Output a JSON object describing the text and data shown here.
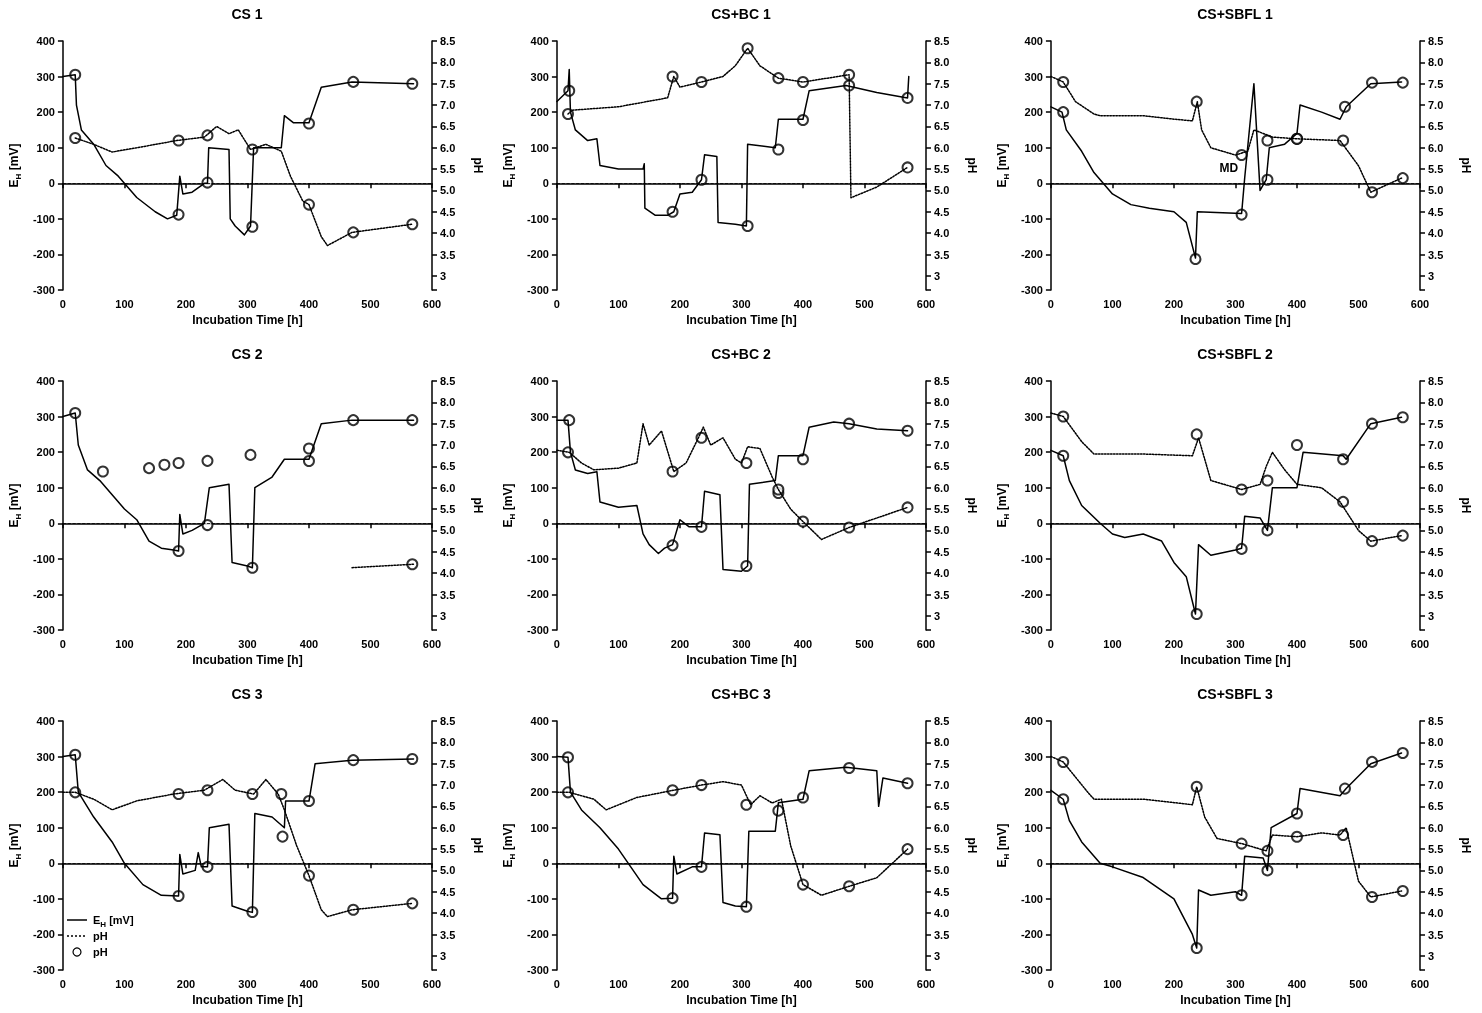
{
  "chart_data": [
    {
      "type": "line",
      "title": "CS 1",
      "xlabel": "Incubation Time [h]",
      "ylabel": "E$_{H}$ [mV]",
      "y2label": "pH",
      "xlim": [
        0,
        600
      ],
      "xticks": [
        0,
        100,
        200,
        300,
        400,
        500,
        600
      ],
      "ylim": [
        -300,
        400
      ],
      "yticks": [
        -300,
        -200,
        -100,
        0,
        100,
        200,
        300,
        400
      ],
      "y2lim": [
        2.67,
        8.5
      ],
      "y2ticks": [
        {
          "value": 2.67,
          "label": null
        },
        3,
        3.5,
        {
          "value": 4,
          "label": "4.0"
        },
        4.5,
        {
          "value": 5,
          "label": "5.0"
        },
        5.5,
        {
          "value": 6,
          "label": "6.0"
        },
        6.5,
        {
          "value": 7,
          "label": "7.0"
        },
        7.5,
        {
          "value": 8,
          "label": "8.0"
        },
        8.5
      ],
      "ref_lines": [
        {
          "axis": "y",
          "value": 0,
          "line_style": "dashed",
          "color": "#000000"
        }
      ],
      "series": [
        {
          "type": "line",
          "color": "#000000",
          "line_style": "solid",
          "marker": "none",
          "x": [
            0,
            20,
            22,
            30,
            50,
            70,
            90,
            120,
            150,
            170,
            185,
            190,
            195,
            210,
            230,
            235,
            237,
            270,
            272,
            280,
            295,
            305,
            310,
            355,
            360,
            375,
            400,
            420,
            470,
            570
          ],
          "values": [
            300,
            305,
            220,
            150,
            110,
            50,
            20,
            -40,
            -80,
            -100,
            -90,
            20,
            -30,
            -25,
            0,
            0,
            100,
            95,
            -100,
            -120,
            -145,
            -120,
            100,
            100,
            190,
            170,
            170,
            270,
            285,
            280
          ]
        },
        {
          "type": "line",
          "axis": "y2",
          "color": "#000000",
          "line_style": "dotted",
          "marker": "none",
          "x": [
            20,
            50,
            80,
            120,
            185,
            230,
            250,
            270,
            285,
            305,
            330,
            355,
            370,
            390,
            400,
            420,
            430,
            470,
            568
          ],
          "values": [
            6.23,
            6.08,
            5.9,
            6.0,
            6.17,
            6.25,
            6.5,
            6.33,
            6.42,
            5.96,
            6.08,
            5.92,
            5.33,
            4.75,
            4.67,
            3.92,
            3.71,
            4.02,
            4.21
          ]
        },
        {
          "type": "scatter",
          "color": "#000000",
          "marker": "circle",
          "x": [
            20,
            188,
            235,
            308,
            400,
            472,
            568
          ],
          "values": [
            305,
            -88,
            2,
            -122,
            168,
            285,
            280
          ]
        },
        {
          "type": "scatter",
          "axis": "y2",
          "color": "#000000",
          "marker": "circle",
          "x": [
            20,
            188,
            235,
            308,
            400,
            472,
            568
          ],
          "values": [
            6.23,
            6.17,
            6.29,
            5.96,
            4.67,
            4.02,
            4.21
          ]
        }
      ]
    },
    {
      "type": "line",
      "title": "CS+BC 1",
      "xlabel": "Incubation Time [h]",
      "ylabel": "E$_{H}$ [mV]",
      "y2label": "pH",
      "xlim": [
        0,
        600
      ],
      "xticks": [
        0,
        100,
        200,
        300,
        400,
        500,
        600
      ],
      "ylim": [
        -300,
        400
      ],
      "yticks": [
        -300,
        -200,
        -100,
        0,
        100,
        200,
        300,
        400
      ],
      "y2lim": [
        2.67,
        8.5
      ],
      "y2ticks": [
        {
          "value": 2.67,
          "label": null
        },
        3,
        3.5,
        {
          "value": 4,
          "label": "4.0"
        },
        4.5,
        {
          "value": 5,
          "label": "5.0"
        },
        5.5,
        {
          "value": 6,
          "label": "6.0"
        },
        6.5,
        {
          "value": 7,
          "label": "7.0"
        },
        7.5,
        {
          "value": 8,
          "label": "8.0"
        },
        8.5
      ],
      "ref_lines": [
        {
          "axis": "y",
          "value": 0,
          "line_style": "dashed",
          "color": "#000000"
        }
      ],
      "series": [
        {
          "type": "line",
          "color": "#000000",
          "line_style": "solid",
          "marker": "none",
          "x": [
            0,
            18,
            20,
            22,
            30,
            50,
            65,
            70,
            100,
            140,
            142,
            143,
            160,
            180,
            190,
            200,
            220,
            235,
            240,
            260,
            262,
            290,
            308,
            310,
            355,
            360,
            400,
            410,
            470,
            520,
            570,
            572
          ],
          "values": [
            230,
            260,
            320,
            200,
            150,
            120,
            125,
            50,
            40,
            40,
            55,
            -70,
            -90,
            -90,
            -80,
            -30,
            -25,
            10,
            80,
            75,
            -110,
            -115,
            -120,
            110,
            100,
            180,
            180,
            260,
            275,
            255,
            240,
            300
          ]
        },
        {
          "type": "line",
          "axis": "y2",
          "color": "#000000",
          "line_style": "dotted",
          "marker": "none",
          "x": [
            18,
            25,
            100,
            180,
            190,
            200,
            235,
            270,
            290,
            310,
            330,
            360,
            400,
            475,
            478,
            520,
            570
          ],
          "values": [
            6.79,
            6.88,
            6.96,
            7.17,
            7.67,
            7.42,
            7.54,
            7.67,
            7.92,
            8.33,
            7.92,
            7.63,
            7.54,
            7.71,
            4.83,
            5.08,
            5.54
          ]
        },
        {
          "type": "scatter",
          "color": "#000000",
          "marker": "circle",
          "x": [
            20,
            188,
            235,
            310,
            360,
            400,
            475,
            570
          ],
          "values": [
            260,
            -80,
            10,
            -120,
            95,
            178,
            275,
            240
          ]
        },
        {
          "type": "scatter",
          "axis": "y2",
          "color": "#000000",
          "marker": "circle",
          "x": [
            18,
            188,
            235,
            310,
            360,
            400,
            475,
            570
          ],
          "values": [
            6.79,
            7.67,
            7.54,
            8.33,
            7.63,
            7.54,
            7.71,
            5.54
          ]
        }
      ]
    },
    {
      "type": "line",
      "title": "CS+SBFL 1",
      "xlabel": "Incubation Time [h]",
      "ylabel": "E$_{H}$ [mV]",
      "y2label": "pH",
      "xlim": [
        0,
        600
      ],
      "xticks": [
        0,
        100,
        200,
        300,
        400,
        500,
        600
      ],
      "ylim": [
        -300,
        400
      ],
      "yticks": [
        -300,
        -200,
        -100,
        0,
        100,
        200,
        300,
        400
      ],
      "y2lim": [
        2.67,
        8.5
      ],
      "y2ticks": [
        {
          "value": 2.67,
          "label": null
        },
        3,
        3.5,
        {
          "value": 4,
          "label": "4.0"
        },
        4.5,
        {
          "value": 5,
          "label": "5.0"
        },
        5.5,
        {
          "value": 6,
          "label": "6.0"
        },
        6.5,
        {
          "value": 7,
          "label": "7.0"
        },
        7.5,
        {
          "value": 8,
          "label": "8.0"
        },
        8.5
      ],
      "ref_lines": [
        {
          "axis": "y",
          "value": 0,
          "line_style": "dashed",
          "color": "#000000"
        }
      ],
      "annotations": [
        "MD"
      ],
      "series": [
        {
          "type": "line",
          "color": "#000000",
          "line_style": "solid",
          "marker": "none",
          "x": [
            0,
            18,
            25,
            50,
            70,
            100,
            130,
            160,
            200,
            220,
            235,
            238,
            310,
            315,
            330,
            340,
            350,
            355,
            380,
            400,
            405,
            440,
            470,
            480,
            520,
            570
          ],
          "values": [
            215,
            200,
            150,
            90,
            30,
            -30,
            -60,
            -70,
            -80,
            -110,
            -210,
            -80,
            -85,
            15,
            280,
            -20,
            10,
            100,
            110,
            140,
            220,
            200,
            180,
            215,
            280,
            285
          ]
        },
        {
          "type": "line",
          "axis": "y2",
          "color": "#000000",
          "line_style": "dotted",
          "marker": "none",
          "x": [
            0,
            20,
            40,
            70,
            80,
            150,
            200,
            230,
            238,
            245,
            260,
            300,
            320,
            330,
            360,
            400,
            470,
            500,
            520,
            570
          ],
          "values": [
            7.67,
            7.54,
            7.08,
            6.79,
            6.75,
            6.75,
            6.67,
            6.63,
            7.08,
            6.42,
            6.0,
            5.83,
            5.92,
            6.42,
            6.25,
            6.21,
            6.17,
            5.58,
            4.96,
            5.29
          ]
        },
        {
          "type": "scatter",
          "color": "#000000",
          "marker": "circle",
          "x": [
            20,
            235,
            310,
            352,
            400,
            478,
            522,
            572
          ],
          "values": [
            200,
            -213,
            -88,
            10,
            125,
            215,
            283,
            283
          ]
        },
        {
          "type": "scatter",
          "axis": "y2",
          "color": "#000000",
          "marker": "circle",
          "x": [
            20,
            237,
            310,
            352,
            400,
            475,
            522,
            572
          ],
          "values": [
            7.54,
            7.08,
            5.83,
            6.17,
            6.21,
            6.17,
            4.96,
            5.29
          ]
        }
      ]
    },
    {
      "type": "line",
      "title": "CS 2",
      "xlabel": "Incubation Time [h]",
      "ylabel": "E$_{H}$ [mV]",
      "y2label": "pH",
      "xlim": [
        0,
        600
      ],
      "xticks": [
        0,
        100,
        200,
        300,
        400,
        500,
        600
      ],
      "ylim": [
        -300,
        400
      ],
      "yticks": [
        -300,
        -200,
        -100,
        0,
        100,
        200,
        300,
        400
      ],
      "y2lim": [
        2.67,
        8.5
      ],
      "y2ticks": [
        {
          "value": 2.67,
          "label": null
        },
        3,
        3.5,
        {
          "value": 4,
          "label": "4.0"
        },
        4.5,
        {
          "value": 5,
          "label": "5.0"
        },
        5.5,
        {
          "value": 6,
          "label": "6.0"
        },
        6.5,
        {
          "value": 7,
          "label": "7.0"
        },
        7.5,
        {
          "value": 8,
          "label": "8.0"
        },
        8.5
      ],
      "ref_lines": [
        {
          "axis": "y",
          "value": 0,
          "line_style": "dashed",
          "color": "#000000"
        }
      ],
      "series": [
        {
          "type": "line",
          "color": "#000000",
          "line_style": "solid",
          "marker": "none",
          "x": [
            0,
            20,
            25,
            40,
            60,
            80,
            100,
            120,
            140,
            160,
            180,
            188,
            190,
            195,
            210,
            230,
            238,
            270,
            275,
            300,
            308,
            312,
            340,
            360,
            380,
            400,
            405,
            420,
            470,
            570
          ],
          "values": [
            300,
            310,
            220,
            150,
            120,
            80,
            40,
            10,
            -50,
            -70,
            -75,
            -78,
            25,
            -30,
            -20,
            0,
            100,
            110,
            -110,
            -120,
            -125,
            100,
            130,
            180,
            180,
            180,
            205,
            280,
            290,
            290
          ]
        },
        {
          "type": "line",
          "axis": "y2",
          "color": "#000000",
          "line_style": "dotted",
          "marker": "none",
          "x": [
            470,
            570
          ],
          "values": [
            4.13,
            4.21
          ]
        },
        {
          "type": "scatter",
          "color": "#000000",
          "marker": "circle",
          "x": [
            20,
            188,
            235,
            308,
            400,
            472,
            568
          ],
          "values": [
            310,
            -78,
            -5,
            -125,
            175,
            290,
            290
          ]
        },
        {
          "type": "scatter",
          "axis": "y2",
          "color": "#000000",
          "marker": "circle",
          "x": [
            65,
            140,
            165,
            188,
            235,
            305,
            400,
            568
          ],
          "values": [
            6.38,
            6.46,
            6.54,
            6.58,
            6.63,
            6.77,
            6.92,
            4.21
          ]
        }
      ]
    },
    {
      "type": "line",
      "title": "CS+BC 2",
      "xlabel": "Incubation Time [h]",
      "ylabel": "E$_{H}$ [mV]",
      "y2label": "pH",
      "xlim": [
        0,
        600
      ],
      "xticks": [
        0,
        100,
        200,
        300,
        400,
        500,
        600
      ],
      "ylim": [
        -300,
        400
      ],
      "yticks": [
        -300,
        -200,
        -100,
        0,
        100,
        200,
        300,
        400
      ],
      "y2lim": [
        2.67,
        8.5
      ],
      "y2ticks": [
        {
          "value": 2.67,
          "label": null
        },
        3,
        3.5,
        {
          "value": 4,
          "label": "4.0"
        },
        4.5,
        {
          "value": 5,
          "label": "5.0"
        },
        5.5,
        {
          "value": 6,
          "label": "6.0"
        },
        6.5,
        {
          "value": 7,
          "label": "7.0"
        },
        7.5,
        {
          "value": 8,
          "label": "8.0"
        },
        8.5
      ],
      "ref_lines": [
        {
          "axis": "y",
          "value": 0,
          "line_style": "dashed",
          "color": "#000000"
        }
      ],
      "series": [
        {
          "type": "line",
          "color": "#000000",
          "line_style": "solid",
          "marker": "none",
          "x": [
            0,
            18,
            22,
            30,
            50,
            65,
            70,
            100,
            130,
            140,
            150,
            165,
            175,
            188,
            200,
            215,
            235,
            240,
            265,
            270,
            300,
            310,
            313,
            355,
            360,
            400,
            410,
            450,
            475,
            520,
            570
          ],
          "values": [
            290,
            290,
            200,
            150,
            140,
            145,
            60,
            45,
            50,
            -30,
            -60,
            -85,
            -70,
            -60,
            10,
            -10,
            -10,
            90,
            80,
            -130,
            -135,
            -120,
            110,
            120,
            190,
            190,
            270,
            285,
            280,
            265,
            260
          ]
        },
        {
          "type": "line",
          "axis": "y2",
          "color": "#000000",
          "line_style": "dotted",
          "marker": "none",
          "x": [
            0,
            20,
            40,
            60,
            100,
            130,
            140,
            150,
            170,
            190,
            210,
            230,
            238,
            250,
            270,
            290,
            300,
            310,
            330,
            350,
            360,
            380,
            400,
            430,
            475,
            570
          ],
          "values": [
            6.88,
            6.83,
            6.58,
            6.42,
            6.46,
            6.58,
            7.5,
            7.0,
            7.33,
            6.38,
            6.58,
            7.17,
            7.42,
            7.0,
            7.17,
            6.67,
            6.58,
            6.96,
            6.92,
            6.25,
            5.96,
            5.5,
            5.21,
            4.79,
            5.07,
            5.54
          ]
        },
        {
          "type": "scatter",
          "color": "#000000",
          "marker": "circle",
          "x": [
            20,
            188,
            235,
            308,
            360,
            400,
            475,
            570
          ],
          "values": [
            290,
            -62,
            -10,
            -120,
            85,
            180,
            280,
            260
          ]
        },
        {
          "type": "scatter",
          "axis": "y2",
          "color": "#000000",
          "marker": "circle",
          "x": [
            18,
            188,
            235,
            308,
            360,
            400,
            475,
            570
          ],
          "values": [
            6.83,
            6.38,
            7.17,
            6.58,
            5.96,
            5.21,
            5.07,
            5.54
          ]
        }
      ]
    },
    {
      "type": "line",
      "title": "CS+SBFL 2",
      "xlabel": "Incubation Time [h]",
      "ylabel": "E$_{H}$ [mV]",
      "y2label": "pH",
      "xlim": [
        0,
        600
      ],
      "xticks": [
        0,
        100,
        200,
        300,
        400,
        500,
        600
      ],
      "ylim": [
        -300,
        400
      ],
      "yticks": [
        -300,
        -200,
        -100,
        0,
        100,
        200,
        300,
        400
      ],
      "y2lim": [
        2.67,
        8.5
      ],
      "y2ticks": [
        {
          "value": 2.67,
          "label": null
        },
        3,
        3.5,
        {
          "value": 4,
          "label": "4.0"
        },
        4.5,
        {
          "value": 5,
          "label": "5.0"
        },
        5.5,
        {
          "value": 6,
          "label": "6.0"
        },
        6.5,
        {
          "value": 7,
          "label": "7.0"
        },
        7.5,
        {
          "value": 8,
          "label": "8.0"
        },
        8.5
      ],
      "ref_lines": [
        {
          "axis": "y",
          "value": 0,
          "line_style": "dashed",
          "color": "#000000"
        }
      ],
      "series": [
        {
          "type": "line",
          "color": "#000000",
          "line_style": "solid",
          "marker": "none",
          "x": [
            0,
            20,
            30,
            50,
            80,
            100,
            120,
            150,
            180,
            200,
            220,
            235,
            240,
            260,
            300,
            310,
            315,
            340,
            352,
            360,
            400,
            410,
            475,
            480,
            520,
            570
          ],
          "values": [
            205,
            190,
            120,
            50,
            0,
            -30,
            -40,
            -30,
            -50,
            -110,
            -150,
            -255,
            -60,
            -90,
            -75,
            -70,
            20,
            15,
            -20,
            100,
            100,
            200,
            190,
            180,
            280,
            298
          ]
        },
        {
          "type": "line",
          "axis": "y2",
          "color": "#000000",
          "line_style": "dotted",
          "marker": "none",
          "x": [
            0,
            20,
            50,
            70,
            150,
            230,
            240,
            260,
            310,
            340,
            350,
            360,
            380,
            400,
            440,
            470,
            500,
            520,
            570
          ],
          "values": [
            7.75,
            7.67,
            7.08,
            6.79,
            6.79,
            6.75,
            7.17,
            6.17,
            5.96,
            6.08,
            6.5,
            6.83,
            6.42,
            6.08,
            6.0,
            5.67,
            5.0,
            4.75,
            4.88
          ]
        },
        {
          "type": "scatter",
          "color": "#000000",
          "marker": "circle",
          "x": [
            20,
            237,
            310,
            352,
            400,
            475,
            522,
            572
          ],
          "values": [
            190,
            -255,
            -72,
            -20,
            220,
            180,
            280,
            298
          ]
        },
        {
          "type": "scatter",
          "axis": "y2",
          "color": "#000000",
          "marker": "circle",
          "x": [
            20,
            237,
            310,
            352,
            475,
            522,
            572
          ],
          "values": [
            7.67,
            7.25,
            5.96,
            6.17,
            5.67,
            4.75,
            4.88
          ]
        }
      ]
    },
    {
      "type": "line",
      "title": "CS 3",
      "xlabel": "Incubation Time [h]",
      "ylabel": "E$_{H}$ [mV]",
      "y2label": "pH",
      "xlim": [
        0,
        600
      ],
      "xticks": [
        0,
        100,
        200,
        300,
        400,
        500,
        600
      ],
      "ylim": [
        -300,
        400
      ],
      "yticks": [
        -300,
        -200,
        -100,
        0,
        100,
        200,
        300,
        400
      ],
      "y2lim": [
        2.67,
        8.5
      ],
      "y2ticks": [
        {
          "value": 2.67,
          "label": null
        },
        3,
        3.5,
        {
          "value": 4,
          "label": "4.0"
        },
        4.5,
        {
          "value": 5,
          "label": "5.0"
        },
        5.5,
        {
          "value": 6,
          "label": "6.0"
        },
        6.5,
        {
          "value": 7,
          "label": "7.0"
        },
        7.5,
        {
          "value": 8,
          "label": "8.0"
        },
        8.5
      ],
      "ref_lines": [
        {
          "axis": "y",
          "value": 0,
          "line_style": "dashed",
          "color": "#000000"
        }
      ],
      "legend": "bottom left",
      "series": [
        {
          "name": "E$_{H}$ [mV]",
          "type": "line",
          "color": "#000000",
          "line_style": "solid",
          "marker": "none",
          "x": [
            0,
            20,
            25,
            50,
            80,
            100,
            130,
            160,
            188,
            190,
            195,
            215,
            220,
            225,
            235,
            238,
            270,
            275,
            300,
            308,
            312,
            340,
            360,
            362,
            400,
            410,
            470,
            570
          ],
          "values": [
            300,
            305,
            200,
            130,
            60,
            0,
            -60,
            -90,
            -92,
            25,
            -30,
            -20,
            30,
            -10,
            -10,
            100,
            110,
            -120,
            -135,
            -138,
            140,
            130,
            100,
            175,
            175,
            280,
            290,
            293
          ]
        },
        {
          "name": "pH",
          "type": "line",
          "axis": "y2",
          "color": "#000000",
          "line_style": "dotted",
          "marker": "none",
          "x": [
            0,
            20,
            50,
            80,
            120,
            180,
            230,
            260,
            280,
            310,
            330,
            350,
            360,
            380,
            400,
            420,
            430,
            470,
            568
          ],
          "values": [
            6.83,
            6.83,
            6.67,
            6.42,
            6.63,
            6.79,
            6.88,
            7.13,
            6.88,
            6.79,
            7.13,
            6.79,
            6.42,
            5.58,
            4.88,
            4.08,
            3.92,
            4.08,
            4.23
          ]
        },
        {
          "type": "scatter",
          "color": "#000000",
          "marker": "circle",
          "x": [
            20,
            188,
            235,
            308,
            357,
            400,
            472,
            568
          ],
          "values": [
            305,
            -92,
            -10,
            -137,
            75,
            175,
            290,
            293
          ]
        },
        {
          "name": "pH",
          "type": "scatter",
          "axis": "y2",
          "color": "#000000",
          "marker": "circle",
          "x": [
            20,
            188,
            235,
            308,
            355,
            400,
            472,
            568
          ],
          "values": [
            6.83,
            6.79,
            6.88,
            6.79,
            6.79,
            4.88,
            4.08,
            4.23
          ]
        }
      ]
    },
    {
      "type": "line",
      "title": "CS+BC 3",
      "xlabel": "Incubation Time [h]",
      "ylabel": "E$_{H}$ [mV]",
      "y2label": "pH",
      "xlim": [
        0,
        600
      ],
      "xticks": [
        0,
        100,
        200,
        300,
        400,
        500,
        600
      ],
      "ylim": [
        -300,
        400
      ],
      "yticks": [
        -300,
        -200,
        -100,
        0,
        100,
        200,
        300,
        400
      ],
      "y2lim": [
        2.67,
        8.5
      ],
      "y2ticks": [
        {
          "value": 2.67,
          "label": null
        },
        3,
        3.5,
        {
          "value": 4,
          "label": "4.0"
        },
        4.5,
        {
          "value": 5,
          "label": "5.0"
        },
        5.5,
        {
          "value": 6,
          "label": "6.0"
        },
        6.5,
        {
          "value": 7,
          "label": "7.0"
        },
        7.5,
        {
          "value": 8,
          "label": "8.0"
        },
        8.5
      ],
      "ref_lines": [
        {
          "axis": "y",
          "value": 0,
          "line_style": "dashed",
          "color": "#000000"
        }
      ],
      "series": [
        {
          "type": "line",
          "color": "#000000",
          "line_style": "solid",
          "marker": "none",
          "x": [
            0,
            18,
            22,
            40,
            70,
            100,
            140,
            170,
            188,
            190,
            195,
            220,
            235,
            240,
            265,
            270,
            290,
            308,
            312,
            355,
            360,
            400,
            410,
            470,
            520,
            523,
            530,
            570
          ],
          "values": [
            300,
            298,
            200,
            150,
            100,
            40,
            -60,
            -100,
            -98,
            20,
            -30,
            -10,
            -10,
            85,
            80,
            -110,
            -120,
            -122,
            90,
            90,
            170,
            180,
            260,
            270,
            260,
            160,
            240,
            225
          ]
        },
        {
          "type": "line",
          "axis": "y2",
          "color": "#000000",
          "line_style": "dotted",
          "marker": "none",
          "x": [
            0,
            20,
            60,
            80,
            130,
            190,
            235,
            270,
            300,
            315,
            330,
            350,
            365,
            380,
            400,
            430,
            475,
            520,
            570
          ],
          "values": [
            6.83,
            6.83,
            6.67,
            6.42,
            6.71,
            6.88,
            7.0,
            7.08,
            7.0,
            6.54,
            6.75,
            6.58,
            6.67,
            5.58,
            4.67,
            4.42,
            4.63,
            4.83,
            5.5
          ]
        },
        {
          "type": "scatter",
          "color": "#000000",
          "marker": "circle",
          "x": [
            18,
            188,
            235,
            308,
            360,
            400,
            475,
            570
          ],
          "values": [
            298,
            -98,
            -10,
            -122,
            148,
            185,
            268,
            225
          ]
        },
        {
          "type": "scatter",
          "axis": "y2",
          "color": "#000000",
          "marker": "circle",
          "x": [
            18,
            188,
            235,
            308,
            400,
            475,
            570
          ],
          "values": [
            6.83,
            6.88,
            7.0,
            6.54,
            4.67,
            4.63,
            5.5
          ]
        }
      ]
    },
    {
      "type": "line",
      "title": "CS+SBFL 3",
      "xlabel": "Incubation Time [h]",
      "ylabel": "E$_{H}$ [mV]",
      "y2label": "pH",
      "xlim": [
        0,
        600
      ],
      "xticks": [
        0,
        100,
        200,
        300,
        400,
        500,
        600
      ],
      "ylim": [
        -300,
        400
      ],
      "yticks": [
        -300,
        -200,
        -100,
        0,
        100,
        200,
        300,
        400
      ],
      "y2lim": [
        2.67,
        8.5
      ],
      "y2ticks": [
        {
          "value": 2.67,
          "label": null
        },
        3,
        3.5,
        {
          "value": 4,
          "label": "4.0"
        },
        4.5,
        {
          "value": 5,
          "label": "5.0"
        },
        5.5,
        {
          "value": 6,
          "label": "6.0"
        },
        6.5,
        {
          "value": 7,
          "label": "7.0"
        },
        7.5,
        {
          "value": 8,
          "label": "8.0"
        },
        8.5
      ],
      "ref_lines": [
        {
          "axis": "y",
          "value": 0,
          "line_style": "dashed",
          "color": "#000000"
        }
      ],
      "series": [
        {
          "type": "line",
          "color": "#000000",
          "line_style": "solid",
          "marker": "none",
          "x": [
            0,
            20,
            30,
            50,
            80,
            100,
            150,
            200,
            230,
            237,
            240,
            260,
            300,
            310,
            315,
            345,
            352,
            358,
            400,
            405,
            470,
            480,
            520,
            570
          ],
          "values": [
            205,
            180,
            120,
            60,
            0,
            -10,
            -40,
            -100,
            -200,
            -238,
            -75,
            -90,
            -80,
            -90,
            20,
            15,
            -20,
            100,
            140,
            210,
            190,
            210,
            280,
            310
          ]
        },
        {
          "type": "line",
          "axis": "y2",
          "color": "#000000",
          "line_style": "dotted",
          "marker": "none",
          "x": [
            0,
            20,
            60,
            70,
            150,
            230,
            237,
            250,
            270,
            310,
            350,
            360,
            400,
            440,
            470,
            480,
            500,
            520,
            570
          ],
          "values": [
            7.67,
            7.54,
            6.83,
            6.67,
            6.67,
            6.54,
            6.96,
            6.25,
            5.75,
            5.63,
            5.46,
            5.83,
            5.79,
            5.88,
            5.83,
            6.0,
            4.75,
            4.38,
            4.52
          ]
        },
        {
          "type": "scatter",
          "color": "#000000",
          "marker": "circle",
          "x": [
            20,
            237,
            310,
            352,
            400,
            478,
            522,
            572
          ],
          "values": [
            180,
            -238,
            -90,
            -20,
            140,
            210,
            285,
            310
          ]
        },
        {
          "type": "scatter",
          "axis": "y2",
          "color": "#000000",
          "marker": "circle",
          "x": [
            20,
            237,
            310,
            352,
            400,
            475,
            522,
            572
          ],
          "values": [
            7.54,
            6.96,
            5.63,
            5.46,
            5.79,
            5.83,
            4.38,
            4.52
          ]
        }
      ]
    }
  ]
}
